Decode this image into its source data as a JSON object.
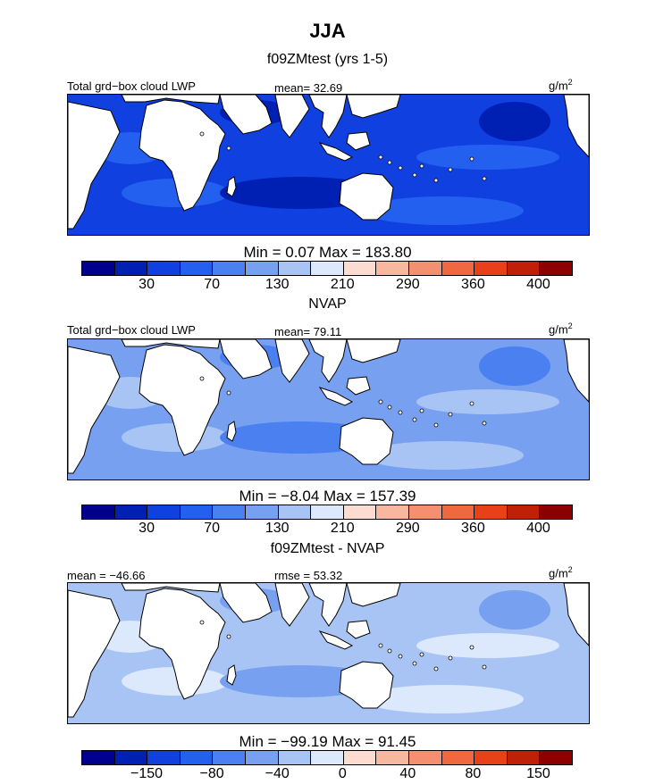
{
  "title": "JJA",
  "colors": [
    "#00008c",
    "#0020b4",
    "#1040e0",
    "#2460f0",
    "#4a80f0",
    "#78a0f0",
    "#a8c4f4",
    "#dce8fc",
    "#fcdcd0",
    "#f8b8a0",
    "#f49070",
    "#f06840",
    "#e84018",
    "#c02008",
    "#8c0000"
  ],
  "land_color": "#ffffff",
  "panels": [
    {
      "title": "f09ZMtest (yrs 1-5)",
      "left_label": "Total grd−box cloud LWP",
      "mid_label": "mean=  32.69",
      "units": "g/m",
      "units_sup": "2",
      "stats": "Min =    0.07  Max =  183.80",
      "ticks": [
        "30",
        "70",
        "130",
        "210",
        "290",
        "360",
        "400"
      ],
      "field_level": 2
    },
    {
      "title": "NVAP",
      "left_label": "Total grd−box cloud LWP",
      "mid_label": "mean=  79.11",
      "units": "g/m",
      "units_sup": "2",
      "stats": "Min =   −8.04  Max =  157.39",
      "ticks": [
        "30",
        "70",
        "130",
        "210",
        "290",
        "360",
        "400"
      ],
      "field_level": 5
    },
    {
      "title": "f09ZMtest - NVAP",
      "left_label": "mean = −46.66",
      "mid_label": "rmse =  53.32",
      "units": "g/m",
      "units_sup": "2",
      "stats": "Min = −99.19  Max =   91.45",
      "ticks": [
        "−150",
        "−80",
        "−40",
        "0",
        "40",
        "80",
        "150"
      ],
      "field_level": 6
    }
  ]
}
